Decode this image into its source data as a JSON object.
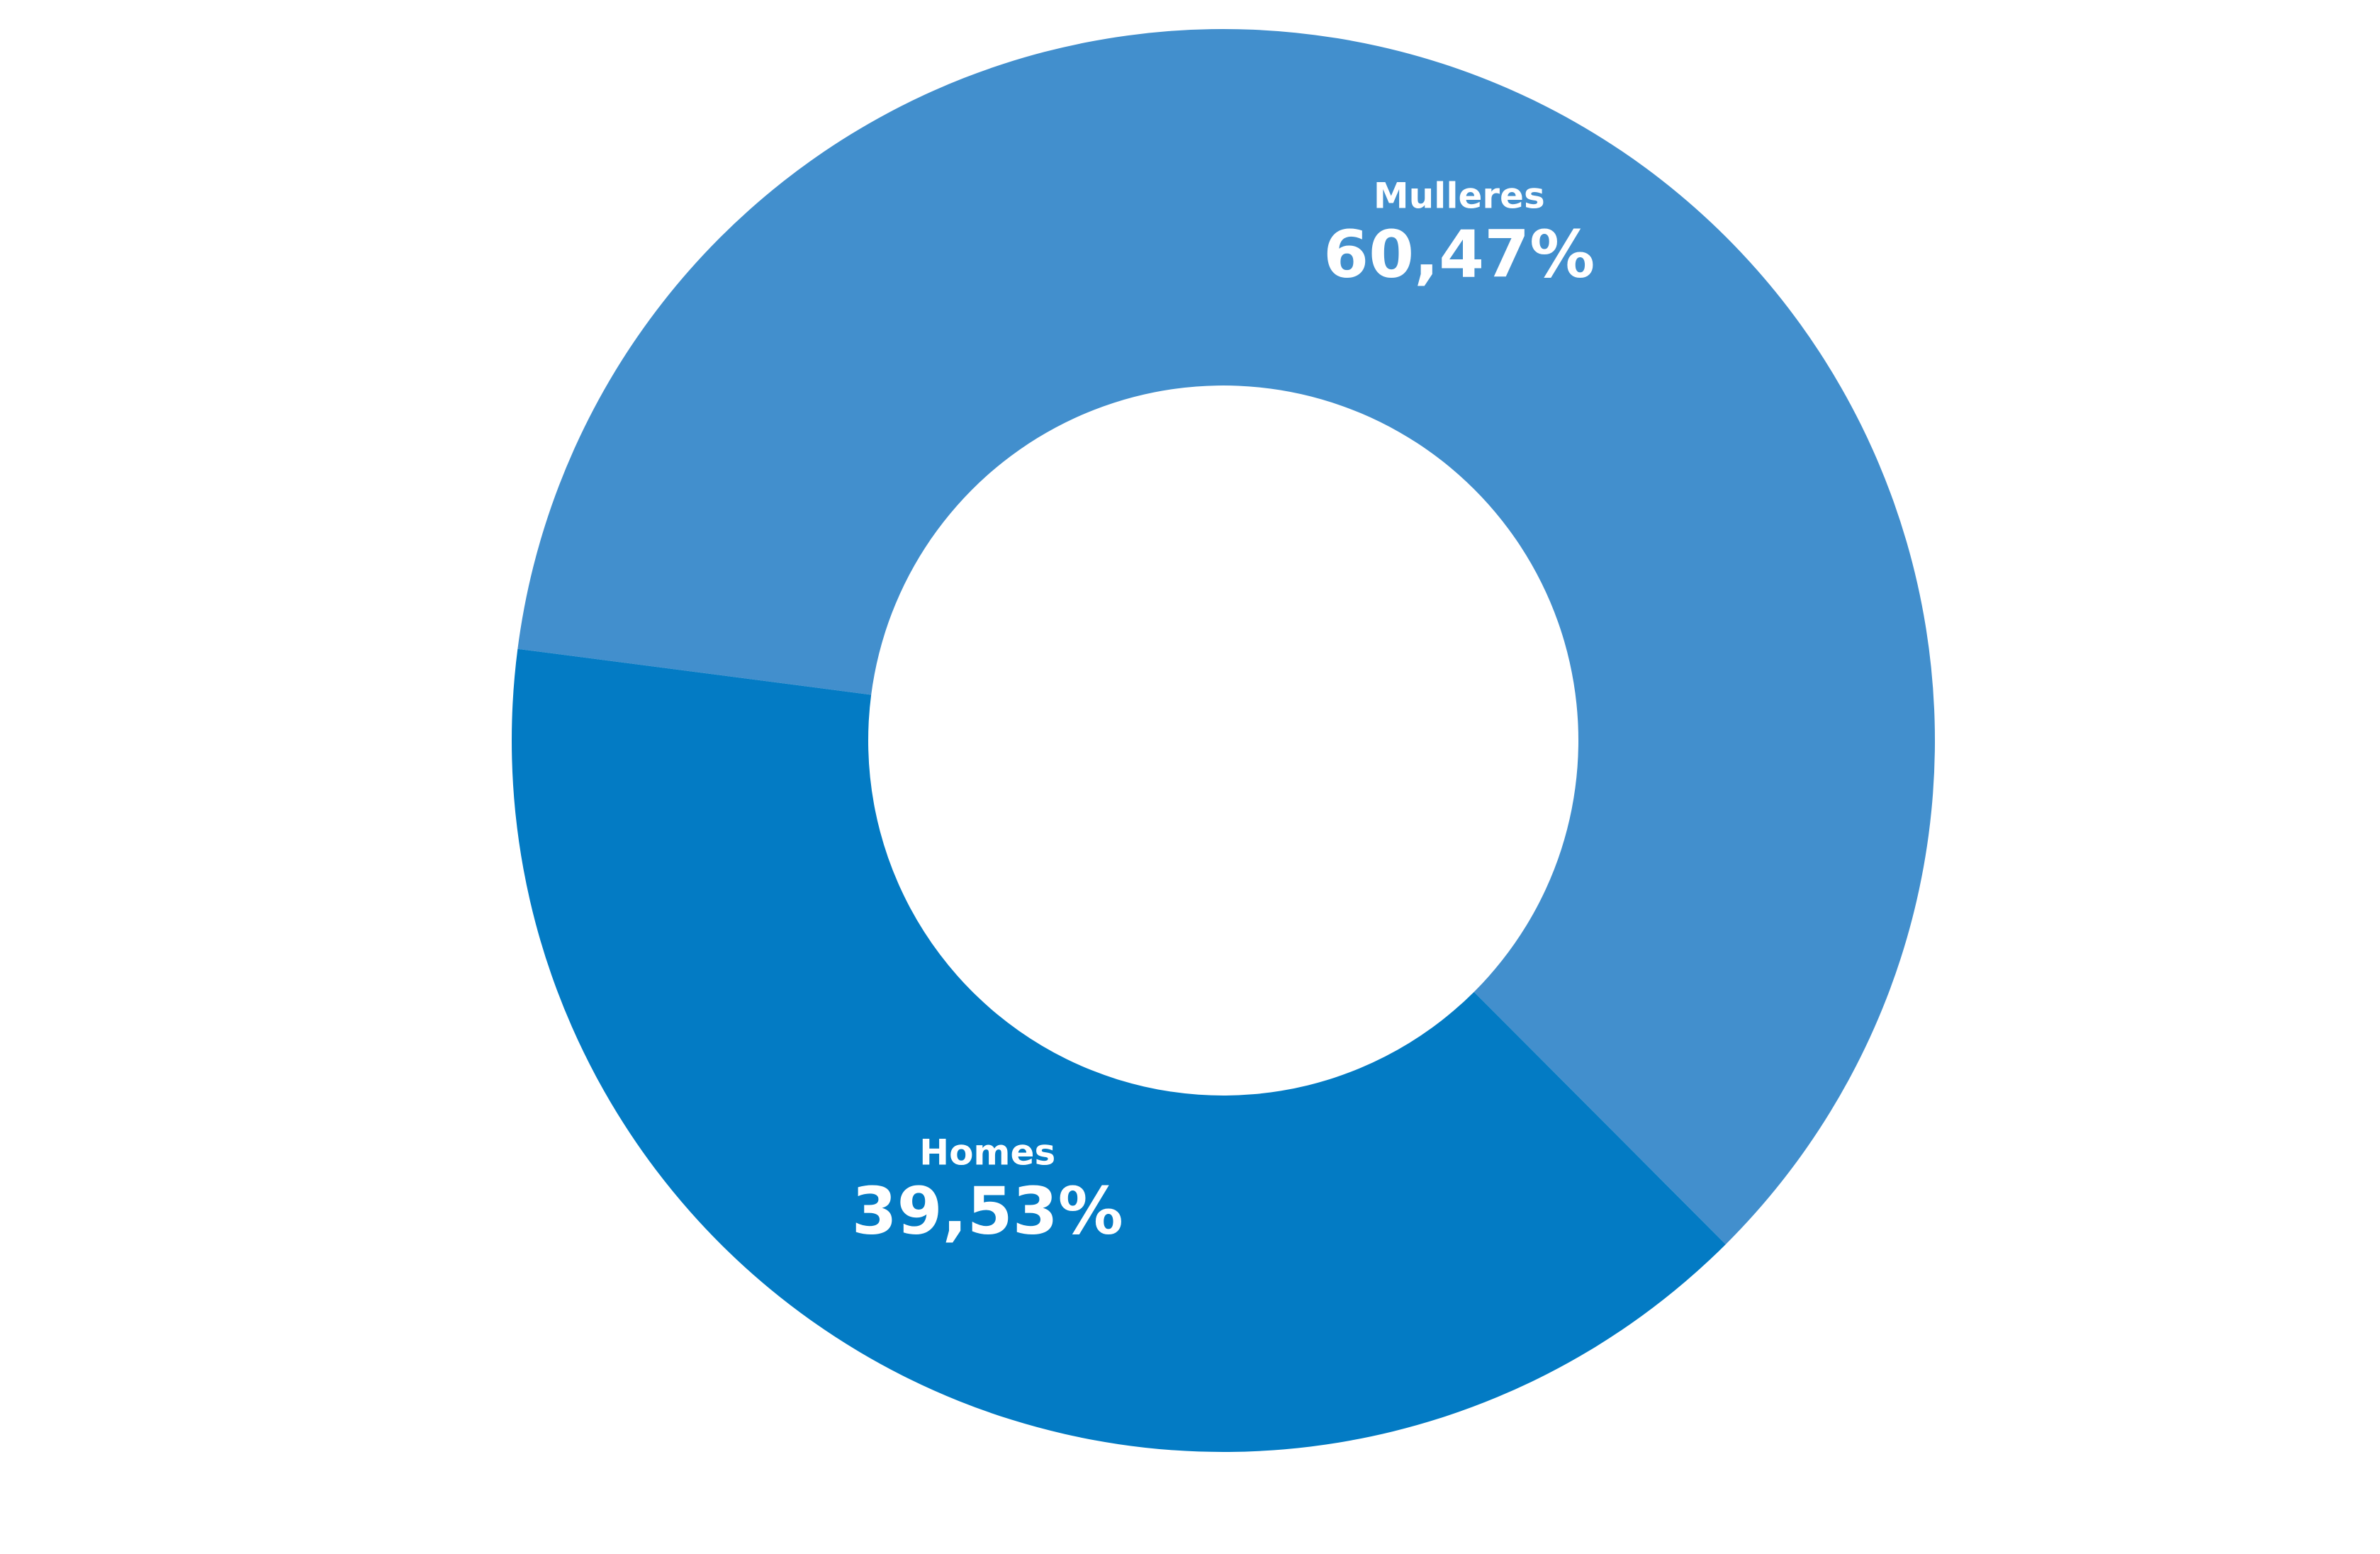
{
  "chart_data": {
    "type": "donut",
    "categories": [
      "Mulleres",
      "Homes"
    ],
    "values": [
      60.47,
      39.53
    ],
    "value_labels": [
      "60,47%",
      "39,53%"
    ],
    "colors": [
      "#428fcd",
      "#037bc4"
    ]
  }
}
